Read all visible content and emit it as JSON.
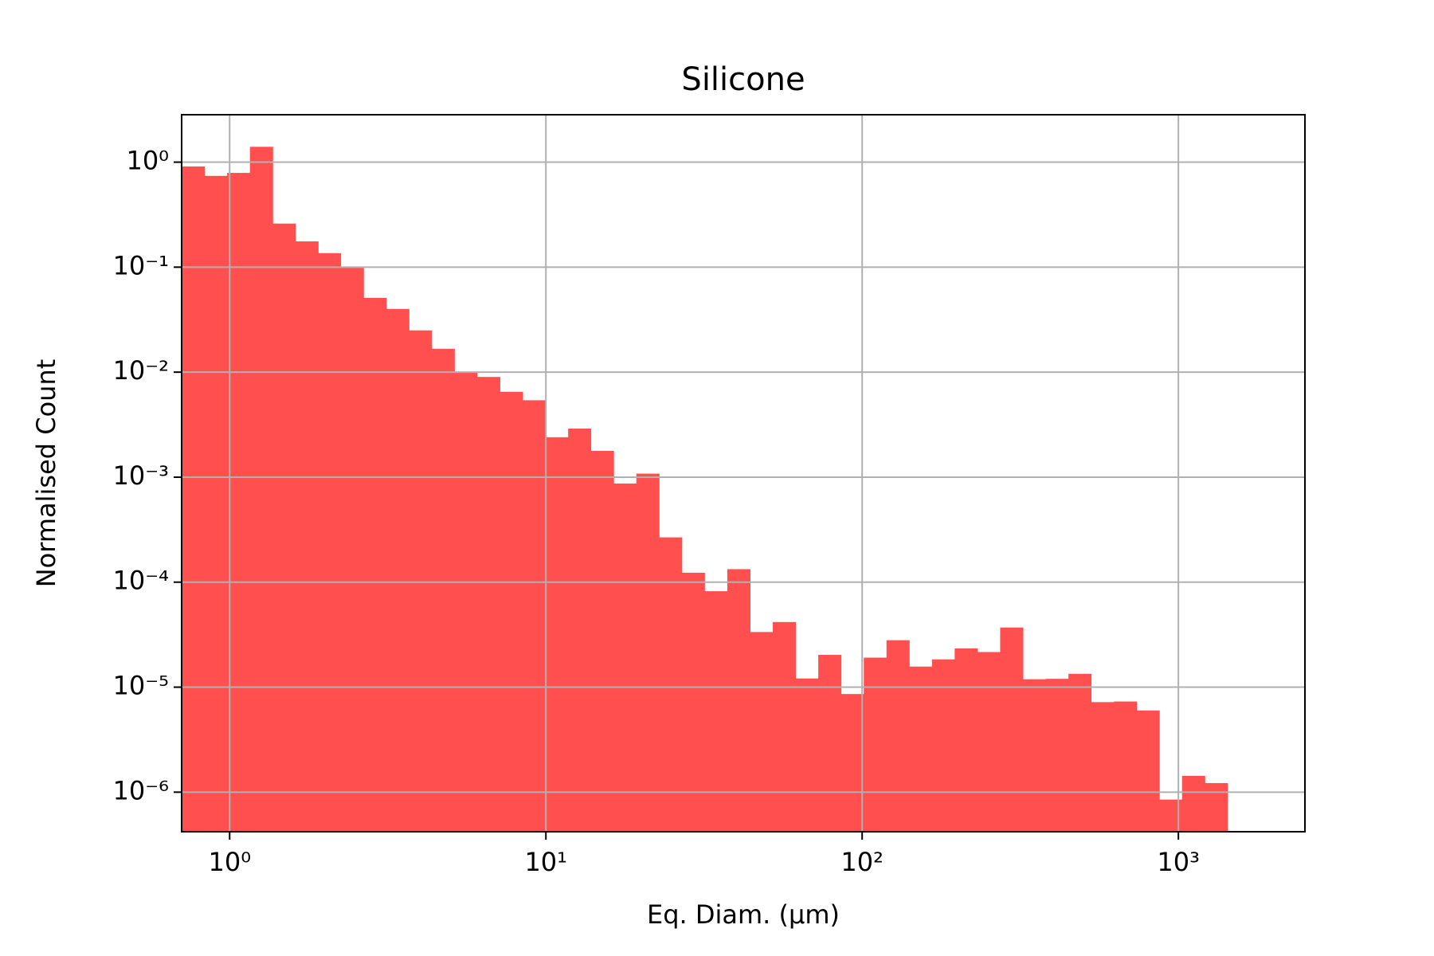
{
  "chart_data": {
    "type": "histogram",
    "title": "Silicone",
    "x_label": "Eq. Diam. (µm)",
    "y_label": "Normalised Count",
    "bins": [
      0.705,
      0.832,
      0.982,
      1.159,
      1.368,
      1.614,
      1.905,
      2.245,
      2.65,
      3.127,
      3.69,
      4.354,
      5.137,
      6.062,
      7.153,
      8.443,
      9.963,
      11.76,
      13.87,
      16.37,
      19.32,
      22.8,
      26.9,
      31.74,
      37.46,
      44.21,
      52.17,
      61.56,
      72.65,
      85.74,
      101.2,
      119.4,
      140.9,
      166.3,
      196.2,
      231.5,
      273.2,
      322.4,
      380.5,
      449.0,
      529.7,
      625.2,
      737.8,
      870.6,
      1027,
      1212,
      1430
    ],
    "values": [
      0.91,
      0.74,
      0.79,
      1.4,
      0.26,
      0.176,
      0.136,
      0.099,
      0.051,
      0.04,
      0.025,
      0.0167,
      0.0099,
      0.009,
      0.0065,
      0.0054,
      0.0024,
      0.0029,
      0.00178,
      0.00087,
      0.00108,
      0.000267,
      0.000123,
      8.2e-05,
      0.000133,
      3.35e-05,
      4.17e-05,
      1.21e-05,
      2.03e-05,
      8.6e-06,
      1.91e-05,
      2.8e-05,
      1.57e-05,
      1.84e-05,
      2.34e-05,
      2.16e-05,
      3.7e-05,
      1.19e-05,
      1.2e-05,
      1.34e-05,
      7.2e-06,
      7.3e-06,
      6e-06,
      8.5e-07,
      1.43e-06,
      1.22e-06
    ],
    "color": "#ff4f4f",
    "xscale": "log",
    "yscale": "log",
    "xlim": [
      0.705,
      2513
    ],
    "ylim": [
      4.2e-07,
      2.83
    ],
    "xticks": [
      {
        "value": 1,
        "label": "10⁰"
      },
      {
        "value": 10,
        "label": "10¹"
      },
      {
        "value": 100,
        "label": "10²"
      },
      {
        "value": 1000,
        "label": "10³"
      }
    ],
    "yticks": [
      {
        "value": 1e-06,
        "label": "10⁻⁶"
      },
      {
        "value": 1e-05,
        "label": "10⁻⁵"
      },
      {
        "value": 0.0001,
        "label": "10⁻⁴"
      },
      {
        "value": 0.001,
        "label": "10⁻³"
      },
      {
        "value": 0.01,
        "label": "10⁻²"
      },
      {
        "value": 0.1,
        "label": "10⁻¹"
      },
      {
        "value": 1,
        "label": "10⁰"
      }
    ],
    "grid": true
  }
}
